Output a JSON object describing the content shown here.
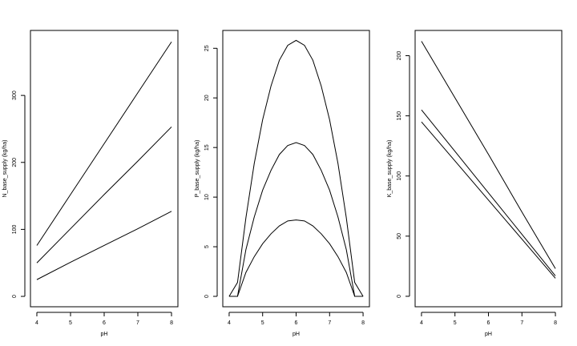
{
  "chart_data": [
    {
      "type": "line",
      "x_label": "pH",
      "y_label": "N_base_supply (kg/ha)",
      "x": [
        4,
        5,
        6,
        7,
        8
      ],
      "series": [
        {
          "color": "#000000",
          "values": [
            76,
            152,
            228,
            304,
            380
          ]
        },
        {
          "color": "#000000",
          "values": [
            50,
            101,
            152,
            202,
            253
          ]
        },
        {
          "color": "#000000",
          "values": [
            25,
            51,
            76,
            101,
            127
          ]
        }
      ],
      "xlim": [
        3.81,
        8.19
      ],
      "xticks": [
        4,
        5,
        6,
        7,
        8
      ],
      "ylim": [
        -15.5,
        397
      ],
      "yticks": [
        0,
        100,
        200,
        300
      ]
    },
    {
      "type": "line",
      "x_label": "pH",
      "y_label": "P_base_supply (kg/ha)",
      "x": [
        4,
        4.25,
        4.5,
        4.75,
        5,
        5.25,
        5.5,
        5.75,
        6,
        6.25,
        6.5,
        6.75,
        7,
        7.25,
        7.5,
        7.75,
        8
      ],
      "series": [
        {
          "color": "#000000",
          "values": [
            0,
            1.4,
            7.9,
            13.4,
            17.8,
            21.2,
            23.8,
            25.3,
            25.8,
            25.3,
            23.8,
            21.2,
            17.8,
            13.4,
            7.9,
            1.4,
            0
          ]
        },
        {
          "color": "#000000",
          "values": [
            0,
            0,
            4.7,
            8.0,
            10.7,
            12.7,
            14.3,
            15.2,
            15.5,
            15.2,
            14.3,
            12.7,
            10.7,
            8.0,
            4.7,
            0,
            0
          ]
        },
        {
          "color": "#000000",
          "values": [
            0,
            0,
            2.4,
            4.0,
            5.3,
            6.3,
            7.1,
            7.6,
            7.7,
            7.6,
            7.1,
            6.3,
            5.3,
            4.0,
            2.4,
            0,
            0
          ]
        }
      ],
      "xlim": [
        3.81,
        8.19
      ],
      "xticks": [
        4,
        5,
        6,
        7,
        8
      ],
      "ylim": [
        -1.05,
        26.8
      ],
      "yticks": [
        0,
        5,
        10,
        15,
        20,
        25
      ]
    },
    {
      "type": "line",
      "x_label": "pH",
      "y_label": "K_base_supply (kg/ha)",
      "x": [
        4,
        5,
        6,
        7,
        8
      ],
      "series": [
        {
          "color": "#000000",
          "values": [
            212,
            165,
            118,
            70,
            23
          ]
        },
        {
          "color": "#000000",
          "values": [
            155,
            120.5,
            86,
            51.5,
            17
          ]
        },
        {
          "color": "#000000",
          "values": [
            145,
            112.5,
            80,
            47.5,
            15
          ]
        }
      ],
      "xlim": [
        3.81,
        8.19
      ],
      "xticks": [
        4,
        5,
        6,
        7,
        8
      ],
      "ylim": [
        -8.7,
        221
      ],
      "yticks": [
        0,
        50,
        100,
        150,
        200
      ]
    }
  ]
}
